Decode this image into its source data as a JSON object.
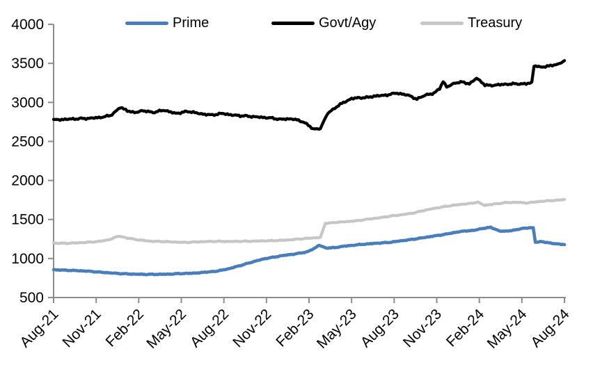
{
  "chart_data": {
    "type": "line",
    "title": "",
    "x_axis": {
      "unit": "months-since-Aug-2021",
      "range_months": [
        0,
        36
      ],
      "tick_positions_months": [
        0,
        3,
        6,
        9,
        12,
        15,
        18,
        21,
        24,
        27,
        30,
        33,
        36
      ],
      "tick_labels": [
        "Aug-21",
        "Nov-21",
        "Feb-22",
        "May-22",
        "Aug-22",
        "Nov-22",
        "Feb-23",
        "May-23",
        "Aug-23",
        "Nov-23",
        "Feb-24",
        "May-24",
        "Aug-24"
      ]
    },
    "y_axis": {
      "min": 500,
      "max": 4000,
      "tick_interval": 500,
      "ticks": [
        4000,
        3500,
        3000,
        2500,
        2000,
        1500,
        1000,
        500
      ]
    },
    "grid": "off",
    "legend": {
      "position": "top",
      "entries": [
        {
          "label": "Prime",
          "color": "#4a7eba"
        },
        {
          "label": "Govt/Agy",
          "color": "#000000"
        },
        {
          "label": "Treasury",
          "color": "#c6c6c6"
        }
      ]
    },
    "series": [
      {
        "name": "Prime",
        "color": "#4a7eba",
        "points": [
          [
            0,
            856
          ],
          [
            0.8,
            850
          ],
          [
            1.6,
            845
          ],
          [
            2.4,
            838
          ],
          [
            3.2,
            826
          ],
          [
            4,
            815
          ],
          [
            4.8,
            806
          ],
          [
            5.6,
            800
          ],
          [
            6.4,
            797
          ],
          [
            7.2,
            797
          ],
          [
            8,
            799
          ],
          [
            8.8,
            806
          ],
          [
            9.6,
            810
          ],
          [
            10.4,
            818
          ],
          [
            11.4,
            836
          ],
          [
            12.2,
            862
          ],
          [
            13.1,
            907
          ],
          [
            14,
            955
          ],
          [
            14.8,
            995
          ],
          [
            15.6,
            1020
          ],
          [
            16.4,
            1045
          ],
          [
            17,
            1058
          ],
          [
            17.8,
            1082
          ],
          [
            18.4,
            1130
          ],
          [
            18.7,
            1172
          ],
          [
            19.2,
            1132
          ],
          [
            19.8,
            1140
          ],
          [
            20.5,
            1158
          ],
          [
            21.2,
            1172
          ],
          [
            22,
            1185
          ],
          [
            22.8,
            1196
          ],
          [
            23.6,
            1205
          ],
          [
            24.4,
            1225
          ],
          [
            25.2,
            1243
          ],
          [
            26,
            1265
          ],
          [
            26.8,
            1288
          ],
          [
            27.6,
            1310
          ],
          [
            28.4,
            1338
          ],
          [
            29,
            1352
          ],
          [
            29.6,
            1362
          ],
          [
            30.2,
            1382
          ],
          [
            30.8,
            1402
          ],
          [
            31.4,
            1352
          ],
          [
            31.9,
            1348
          ],
          [
            32.4,
            1362
          ],
          [
            33,
            1385
          ],
          [
            33.5,
            1392
          ],
          [
            33.8,
            1395
          ],
          [
            33.95,
            1210
          ],
          [
            34.4,
            1215
          ],
          [
            34.9,
            1200
          ],
          [
            35.5,
            1188
          ],
          [
            36,
            1178
          ]
        ]
      },
      {
        "name": "Govt/Agy",
        "color": "#000000",
        "points": [
          [
            0,
            2775
          ],
          [
            0.8,
            2783
          ],
          [
            1.6,
            2790
          ],
          [
            2.4,
            2795
          ],
          [
            3.2,
            2805
          ],
          [
            4,
            2830
          ],
          [
            4.7,
            2935
          ],
          [
            5.2,
            2890
          ],
          [
            5.7,
            2870
          ],
          [
            6.2,
            2895
          ],
          [
            7,
            2872
          ],
          [
            7.8,
            2900
          ],
          [
            8.6,
            2858
          ],
          [
            9.5,
            2885
          ],
          [
            10.3,
            2856
          ],
          [
            11.1,
            2838
          ],
          [
            11.9,
            2858
          ],
          [
            12.7,
            2835
          ],
          [
            13.5,
            2826
          ],
          [
            14.4,
            2812
          ],
          [
            15.2,
            2802
          ],
          [
            16,
            2783
          ],
          [
            16.8,
            2790
          ],
          [
            17.6,
            2752
          ],
          [
            18.3,
            2657
          ],
          [
            18.8,
            2668
          ],
          [
            19.3,
            2860
          ],
          [
            20.2,
            2975
          ],
          [
            21,
            3050
          ],
          [
            21.8,
            3062
          ],
          [
            22.7,
            3080
          ],
          [
            23.5,
            3095
          ],
          [
            24.2,
            3120
          ],
          [
            24.9,
            3095
          ],
          [
            25.6,
            3045
          ],
          [
            26.2,
            3090
          ],
          [
            26.8,
            3120
          ],
          [
            27.2,
            3180
          ],
          [
            27.45,
            3270
          ],
          [
            27.7,
            3200
          ],
          [
            28.2,
            3240
          ],
          [
            28.8,
            3262
          ],
          [
            29.3,
            3238
          ],
          [
            29.8,
            3315
          ],
          [
            30.4,
            3218
          ],
          [
            31,
            3220
          ],
          [
            31.8,
            3232
          ],
          [
            32.6,
            3238
          ],
          [
            33.3,
            3238
          ],
          [
            33.7,
            3248
          ],
          [
            33.85,
            3470
          ],
          [
            34.3,
            3452
          ],
          [
            34.9,
            3468
          ],
          [
            35.5,
            3482
          ],
          [
            36,
            3535
          ]
        ]
      },
      {
        "name": "Treasury",
        "color": "#c6c6c6",
        "points": [
          [
            0,
            1198
          ],
          [
            0.8,
            1194
          ],
          [
            1.6,
            1200
          ],
          [
            2.4,
            1208
          ],
          [
            3.2,
            1218
          ],
          [
            4,
            1245
          ],
          [
            4.6,
            1288
          ],
          [
            5.2,
            1262
          ],
          [
            6,
            1238
          ],
          [
            6.8,
            1222
          ],
          [
            7.6,
            1218
          ],
          [
            8.4,
            1212
          ],
          [
            9.2,
            1206
          ],
          [
            10,
            1212
          ],
          [
            10.8,
            1218
          ],
          [
            11.6,
            1220
          ],
          [
            12.4,
            1218
          ],
          [
            13.2,
            1220
          ],
          [
            14,
            1222
          ],
          [
            14.8,
            1226
          ],
          [
            15.6,
            1230
          ],
          [
            16.4,
            1236
          ],
          [
            17.2,
            1248
          ],
          [
            18,
            1260
          ],
          [
            18.8,
            1270
          ],
          [
            19.15,
            1450
          ],
          [
            19.8,
            1462
          ],
          [
            20.6,
            1472
          ],
          [
            21.4,
            1484
          ],
          [
            22.2,
            1505
          ],
          [
            23,
            1522
          ],
          [
            23.8,
            1545
          ],
          [
            24.6,
            1562
          ],
          [
            25.4,
            1585
          ],
          [
            26.2,
            1620
          ],
          [
            27,
            1648
          ],
          [
            27.8,
            1672
          ],
          [
            28.6,
            1692
          ],
          [
            29.4,
            1705
          ],
          [
            29.9,
            1722
          ],
          [
            30.4,
            1682
          ],
          [
            31,
            1696
          ],
          [
            31.8,
            1715
          ],
          [
            32.6,
            1720
          ],
          [
            33.4,
            1712
          ],
          [
            34.1,
            1728
          ],
          [
            34.9,
            1740
          ],
          [
            35.5,
            1748
          ],
          [
            36,
            1757
          ]
        ]
      }
    ]
  },
  "colors": {
    "axis": "#8c8c8c",
    "text": "#000000",
    "background": "#ffffff"
  }
}
